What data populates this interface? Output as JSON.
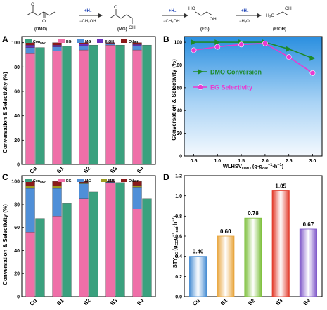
{
  "scheme": {
    "compounds": [
      "(DMO)",
      "(MG)",
      "(EG)",
      "(EtOH)"
    ],
    "steps": [
      {
        "above": "+H₂",
        "below": "−CH₃OH"
      },
      {
        "above": "+H₂",
        "below": "−CH₃OH"
      },
      {
        "above": "+H₂",
        "below": "−H₂O"
      }
    ],
    "atom_labels": {
      "o": "O",
      "oh": "OH",
      "ho": "HO",
      "h3c": "H₃C"
    }
  },
  "colors": {
    "con": "#3aa17e",
    "eg": "#ef6fa8",
    "mg": "#4f8fd8",
    "etoh": "#6a2fc0",
    "mm": "#9c9a1f",
    "other": "#8b1a1a",
    "bar_cu": "#4a8fd4",
    "bar_s1": "#e8a43a",
    "bar_s2": "#7cbf3a",
    "bar_s3": "#e23a2a",
    "bar_s4": "#7d55c8",
    "line_green": "#1e8a2a",
    "line_magenta": "#e83ad0",
    "plot_b_bg_top": "#2a8fe0",
    "plot_b_bg_bottom": "#eef6fd"
  },
  "chart_data": [
    {
      "panel": "A",
      "type": "bar",
      "ylabel": "Conversation & Selectivity (%)",
      "ylim": [
        0,
        105
      ],
      "yticks": [
        0,
        20,
        40,
        60,
        80,
        100
      ],
      "categories": [
        "Cu",
        "S1",
        "S2",
        "S3",
        "S4"
      ],
      "legend": {
        "con_main": "Con",
        "con_sub": "DMO",
        "eg": "EG",
        "mg": "MG",
        "etoh": "EtOH",
        "other": "Other"
      },
      "conversion": [
        96,
        97,
        98,
        98,
        98
      ],
      "selectivity_stack": [
        {
          "series": "eg",
          "values": [
            91,
            93,
            94,
            98,
            94
          ]
        },
        {
          "series": "mg",
          "values": [
            5,
            3.5,
            3.5,
            1,
            3.5
          ]
        },
        {
          "series": "etoh",
          "values": [
            2,
            1.5,
            1.5,
            0.5,
            1
          ]
        },
        {
          "series": "other",
          "values": [
            2,
            2,
            1,
            0.5,
            1.5
          ]
        }
      ]
    },
    {
      "panel": "B",
      "type": "line",
      "ylabel": "Conversation & Selectivity (%)",
      "xlabel_main": "WLHSV",
      "xlabel_sub": "DMO",
      "xlabel_units": " (g·g",
      "xlabel_sub2": "cat",
      "xlabel_sup": "−1",
      "xlabel_mid": "·h",
      "xlabel_sup2": "−1",
      "xlabel_end": ")",
      "x": [
        0.5,
        1.0,
        1.5,
        2.0,
        2.5,
        3.0
      ],
      "xticks": [
        "0.5",
        "1.0",
        "1.5",
        "2.0",
        "2.5",
        "3.0"
      ],
      "xlim": [
        0.3,
        3.2
      ],
      "ylim": [
        0,
        105
      ],
      "yticks": [
        0,
        20,
        40,
        60,
        80,
        100
      ],
      "series": [
        {
          "name": "DMO Conversion",
          "values": [
            100,
            100,
            100,
            100,
            94,
            86
          ]
        },
        {
          "name": "EG Selectivity",
          "values": [
            93,
            96,
            98,
            99,
            87,
            73
          ]
        }
      ]
    },
    {
      "panel": "C",
      "type": "bar",
      "ylabel": "Conversation & Selectivity (%)",
      "ylim": [
        0,
        105
      ],
      "yticks": [
        0,
        20,
        40,
        60,
        80,
        100
      ],
      "categories": [
        "Cu",
        "S1",
        "S2",
        "S3",
        "S4"
      ],
      "legend": {
        "con_main": "Con",
        "con_sub": "DMO",
        "eg": "EG",
        "mg": "MG",
        "mm": "MM",
        "other": "Other"
      },
      "conversion": [
        68,
        81,
        91,
        99,
        85
      ],
      "selectivity_stack": [
        {
          "series": "eg",
          "values": [
            56,
            70,
            85,
            99,
            76
          ]
        },
        {
          "series": "mg",
          "values": [
            38,
            24,
            13,
            0.5,
            19
          ]
        },
        {
          "series": "mm",
          "values": [
            2,
            2,
            1,
            0,
            1.5
          ]
        },
        {
          "series": "other",
          "values": [
            4,
            4,
            1,
            0.5,
            3.5
          ]
        }
      ]
    },
    {
      "panel": "D",
      "type": "bar",
      "ylabel_main": "STY",
      "ylabel_sub": "EG",
      "ylabel_units": " (g",
      "ylabel_sub2": "EG",
      "ylabel_mid": "g",
      "ylabel_sup": "−1",
      "ylabel_sub3": "cat",
      "ylabel_mid2": "·h",
      "ylabel_sup2": "−1",
      "ylabel_end": ")",
      "categories": [
        "Cu",
        "S1",
        "S2",
        "S3",
        "S4"
      ],
      "values": [
        0.4,
        0.6,
        0.78,
        1.05,
        0.67
      ],
      "value_labels": [
        "0.40",
        "0.60",
        "0.78",
        "1.05",
        "0.67"
      ],
      "ylim": [
        0,
        1.2
      ],
      "yticks": [
        "0.0",
        "0.2",
        "0.4",
        "0.6",
        "0.8",
        "1.0",
        "1.2"
      ]
    }
  ]
}
